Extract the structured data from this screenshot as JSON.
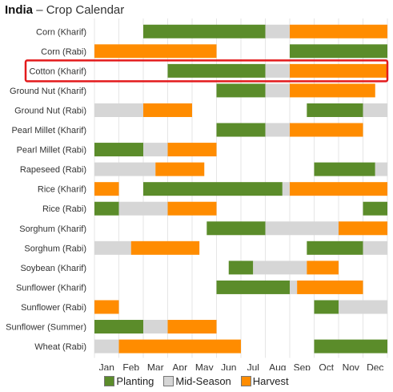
{
  "title": {
    "country": "India",
    "separator": "–",
    "subtitle": "Crop Calendar"
  },
  "colors": {
    "Planting": "#5b8c2a",
    "Mid-Season": "#d6d6d6",
    "Harvest": "#ff8c00",
    "highlight": "#e31a1c"
  },
  "chart_data": {
    "type": "gantt",
    "title": "India – Crop Calendar",
    "x_axis": {
      "unit": "month",
      "range": [
        0,
        12
      ],
      "tick_labels": [
        "Jan",
        "Feb",
        "Mar",
        "Apr",
        "May",
        "Jun",
        "Jul",
        "Aug",
        "Sep",
        "Oct",
        "Nov",
        "Dec"
      ]
    },
    "legend": {
      "position": "bottom",
      "entries": [
        "Planting",
        "Mid-Season",
        "Harvest"
      ]
    },
    "highlighted": "Cotton (Kharif)",
    "rows": [
      {
        "crop": "Corn (Kharif)",
        "segments": [
          {
            "stage": "Planting",
            "start": 2.0,
            "end": 7.0
          },
          {
            "stage": "Mid-Season",
            "start": 7.0,
            "end": 8.0
          },
          {
            "stage": "Harvest",
            "start": 8.0,
            "end": 12.0
          }
        ]
      },
      {
        "crop": "Corn (Rabi)",
        "segments": [
          {
            "stage": "Harvest",
            "start": 0.0,
            "end": 5.0
          },
          {
            "stage": "Planting",
            "start": 8.0,
            "end": 12.0
          }
        ]
      },
      {
        "crop": "Cotton (Kharif)",
        "segments": [
          {
            "stage": "Planting",
            "start": 3.0,
            "end": 7.0
          },
          {
            "stage": "Mid-Season",
            "start": 7.0,
            "end": 8.0
          },
          {
            "stage": "Harvest",
            "start": 8.0,
            "end": 12.0
          }
        ]
      },
      {
        "crop": "Ground Nut (Kharif)",
        "segments": [
          {
            "stage": "Planting",
            "start": 5.0,
            "end": 7.0
          },
          {
            "stage": "Mid-Season",
            "start": 7.0,
            "end": 8.0
          },
          {
            "stage": "Harvest",
            "start": 8.0,
            "end": 11.5
          }
        ]
      },
      {
        "crop": "Ground Nut (Rabi)",
        "segments": [
          {
            "stage": "Mid-Season",
            "start": 0.0,
            "end": 2.0
          },
          {
            "stage": "Harvest",
            "start": 2.0,
            "end": 4.0
          },
          {
            "stage": "Planting",
            "start": 8.7,
            "end": 11.0
          },
          {
            "stage": "Mid-Season",
            "start": 11.0,
            "end": 12.0
          }
        ]
      },
      {
        "crop": "Pearl Millet (Kharif)",
        "segments": [
          {
            "stage": "Planting",
            "start": 5.0,
            "end": 7.0
          },
          {
            "stage": "Mid-Season",
            "start": 7.0,
            "end": 8.0
          },
          {
            "stage": "Harvest",
            "start": 8.0,
            "end": 11.0
          }
        ]
      },
      {
        "crop": "Pearl Millet (Rabi)",
        "segments": [
          {
            "stage": "Planting",
            "start": 0.0,
            "end": 2.0
          },
          {
            "stage": "Mid-Season",
            "start": 2.0,
            "end": 3.0
          },
          {
            "stage": "Harvest",
            "start": 3.0,
            "end": 5.0
          }
        ]
      },
      {
        "crop": "Rapeseed (Rabi)",
        "segments": [
          {
            "stage": "Mid-Season",
            "start": 0.0,
            "end": 2.5
          },
          {
            "stage": "Harvest",
            "start": 2.5,
            "end": 4.5
          },
          {
            "stage": "Planting",
            "start": 9.0,
            "end": 11.5
          },
          {
            "stage": "Mid-Season",
            "start": 11.5,
            "end": 12.0
          }
        ]
      },
      {
        "crop": "Rice (Kharif)",
        "segments": [
          {
            "stage": "Harvest",
            "start": 0.0,
            "end": 1.0
          },
          {
            "stage": "Planting",
            "start": 2.0,
            "end": 7.7
          },
          {
            "stage": "Mid-Season",
            "start": 7.7,
            "end": 8.0
          },
          {
            "stage": "Harvest",
            "start": 8.0,
            "end": 12.0
          }
        ]
      },
      {
        "crop": "Rice (Rabi)",
        "segments": [
          {
            "stage": "Planting",
            "start": 0.0,
            "end": 1.0
          },
          {
            "stage": "Mid-Season",
            "start": 1.0,
            "end": 3.0
          },
          {
            "stage": "Harvest",
            "start": 3.0,
            "end": 5.0
          },
          {
            "stage": "Planting",
            "start": 11.0,
            "end": 12.0
          }
        ]
      },
      {
        "crop": "Sorghum (Kharif)",
        "segments": [
          {
            "stage": "Planting",
            "start": 4.6,
            "end": 7.0
          },
          {
            "stage": "Mid-Season",
            "start": 7.0,
            "end": 10.0
          },
          {
            "stage": "Harvest",
            "start": 10.0,
            "end": 12.0
          }
        ]
      },
      {
        "crop": "Sorghum (Rabi)",
        "segments": [
          {
            "stage": "Mid-Season",
            "start": 0.0,
            "end": 1.5
          },
          {
            "stage": "Harvest",
            "start": 1.5,
            "end": 4.3
          },
          {
            "stage": "Planting",
            "start": 8.7,
            "end": 11.0
          },
          {
            "stage": "Mid-Season",
            "start": 11.0,
            "end": 12.0
          }
        ]
      },
      {
        "crop": "Soybean (Kharif)",
        "segments": [
          {
            "stage": "Planting",
            "start": 5.5,
            "end": 6.5
          },
          {
            "stage": "Mid-Season",
            "start": 6.5,
            "end": 8.7
          },
          {
            "stage": "Harvest",
            "start": 8.7,
            "end": 10.0
          }
        ]
      },
      {
        "crop": "Sunflower (Kharif)",
        "segments": [
          {
            "stage": "Planting",
            "start": 5.0,
            "end": 8.0
          },
          {
            "stage": "Mid-Season",
            "start": 8.0,
            "end": 8.3
          },
          {
            "stage": "Harvest",
            "start": 8.3,
            "end": 11.0
          }
        ]
      },
      {
        "crop": "Sunflower (Rabi)",
        "segments": [
          {
            "stage": "Harvest",
            "start": 0.0,
            "end": 1.0
          },
          {
            "stage": "Planting",
            "start": 9.0,
            "end": 10.0
          },
          {
            "stage": "Mid-Season",
            "start": 10.0,
            "end": 12.0
          }
        ]
      },
      {
        "crop": "Sunflower (Summer)",
        "segments": [
          {
            "stage": "Planting",
            "start": 0.0,
            "end": 2.0
          },
          {
            "stage": "Mid-Season",
            "start": 2.0,
            "end": 3.0
          },
          {
            "stage": "Harvest",
            "start": 3.0,
            "end": 5.0
          }
        ]
      },
      {
        "crop": "Wheat (Rabi)",
        "segments": [
          {
            "stage": "Mid-Season",
            "start": 0.0,
            "end": 1.0
          },
          {
            "stage": "Harvest",
            "start": 1.0,
            "end": 6.0
          },
          {
            "stage": "Planting",
            "start": 9.0,
            "end": 12.0
          }
        ]
      }
    ]
  }
}
